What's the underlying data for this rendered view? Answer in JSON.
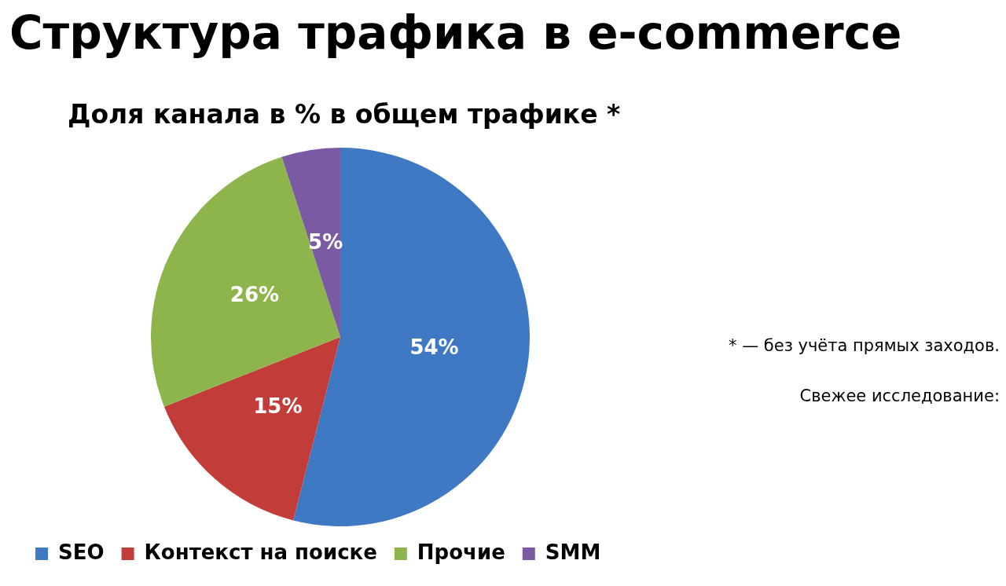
{
  "chart_data": {
    "type": "pie",
    "title": "Структура трафика в e-commerce",
    "subtitle": "Доля канала в % в общем трафике *",
    "categories": [
      "SEO",
      "Контекст на поиске",
      "Прочие",
      "SMM"
    ],
    "values": [
      54,
      15,
      26,
      5
    ],
    "colors": [
      "#3f79c3",
      "#c23c3a",
      "#8db54b",
      "#7a5aa3"
    ],
    "value_labels": [
      "54%",
      "15%",
      "26%",
      "5%"
    ],
    "legend": "bottom",
    "annotations": [
      "* — без учёта прямых заходов.",
      "Свежее исследование:"
    ]
  }
}
